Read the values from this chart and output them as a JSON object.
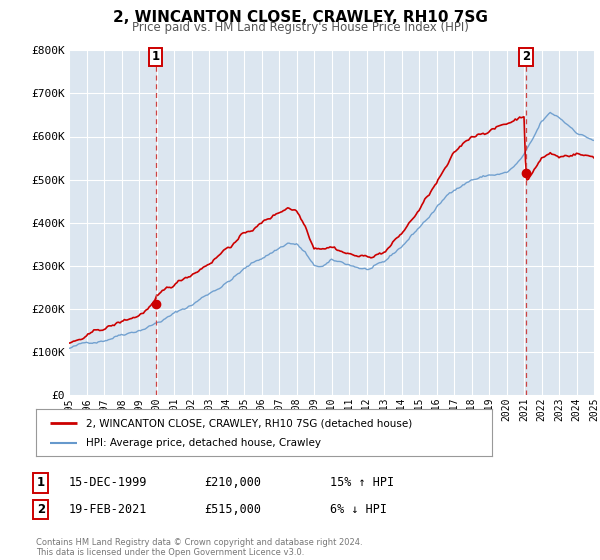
{
  "title": "2, WINCANTON CLOSE, CRAWLEY, RH10 7SG",
  "subtitle": "Price paid vs. HM Land Registry's House Price Index (HPI)",
  "legend_line1": "2, WINCANTON CLOSE, CRAWLEY, RH10 7SG (detached house)",
  "legend_line2": "HPI: Average price, detached house, Crawley",
  "sale1_label": "1",
  "sale1_date": "15-DEC-1999",
  "sale1_price": "£210,000",
  "sale1_hpi": "15% ↑ HPI",
  "sale1_x": 1999.96,
  "sale1_y": 210000,
  "sale2_label": "2",
  "sale2_date": "19-FEB-2021",
  "sale2_price": "£515,000",
  "sale2_hpi": "6% ↓ HPI",
  "sale2_x": 2021.12,
  "sale2_y": 515000,
  "footer": "Contains HM Land Registry data © Crown copyright and database right 2024.\nThis data is licensed under the Open Government Licence v3.0.",
  "red_color": "#cc0000",
  "blue_color": "#6699cc",
  "dashed_color": "#cc4444",
  "bg_color": "#dce6f0",
  "grid_color": "#ffffff",
  "x_start": 1995,
  "x_end": 2025,
  "y_min": 0,
  "y_max": 800000,
  "yticks": [
    0,
    100000,
    200000,
    300000,
    400000,
    500000,
    600000,
    700000,
    800000
  ],
  "ytick_labels": [
    "£0",
    "£100K",
    "£200K",
    "£300K",
    "£400K",
    "£500K",
    "£600K",
    "£700K",
    "£800K"
  ],
  "xticks": [
    1995,
    1996,
    1997,
    1998,
    1999,
    2000,
    2001,
    2002,
    2003,
    2004,
    2005,
    2006,
    2007,
    2008,
    2009,
    2010,
    2011,
    2012,
    2013,
    2014,
    2015,
    2016,
    2017,
    2018,
    2019,
    2020,
    2021,
    2022,
    2023,
    2024,
    2025
  ]
}
